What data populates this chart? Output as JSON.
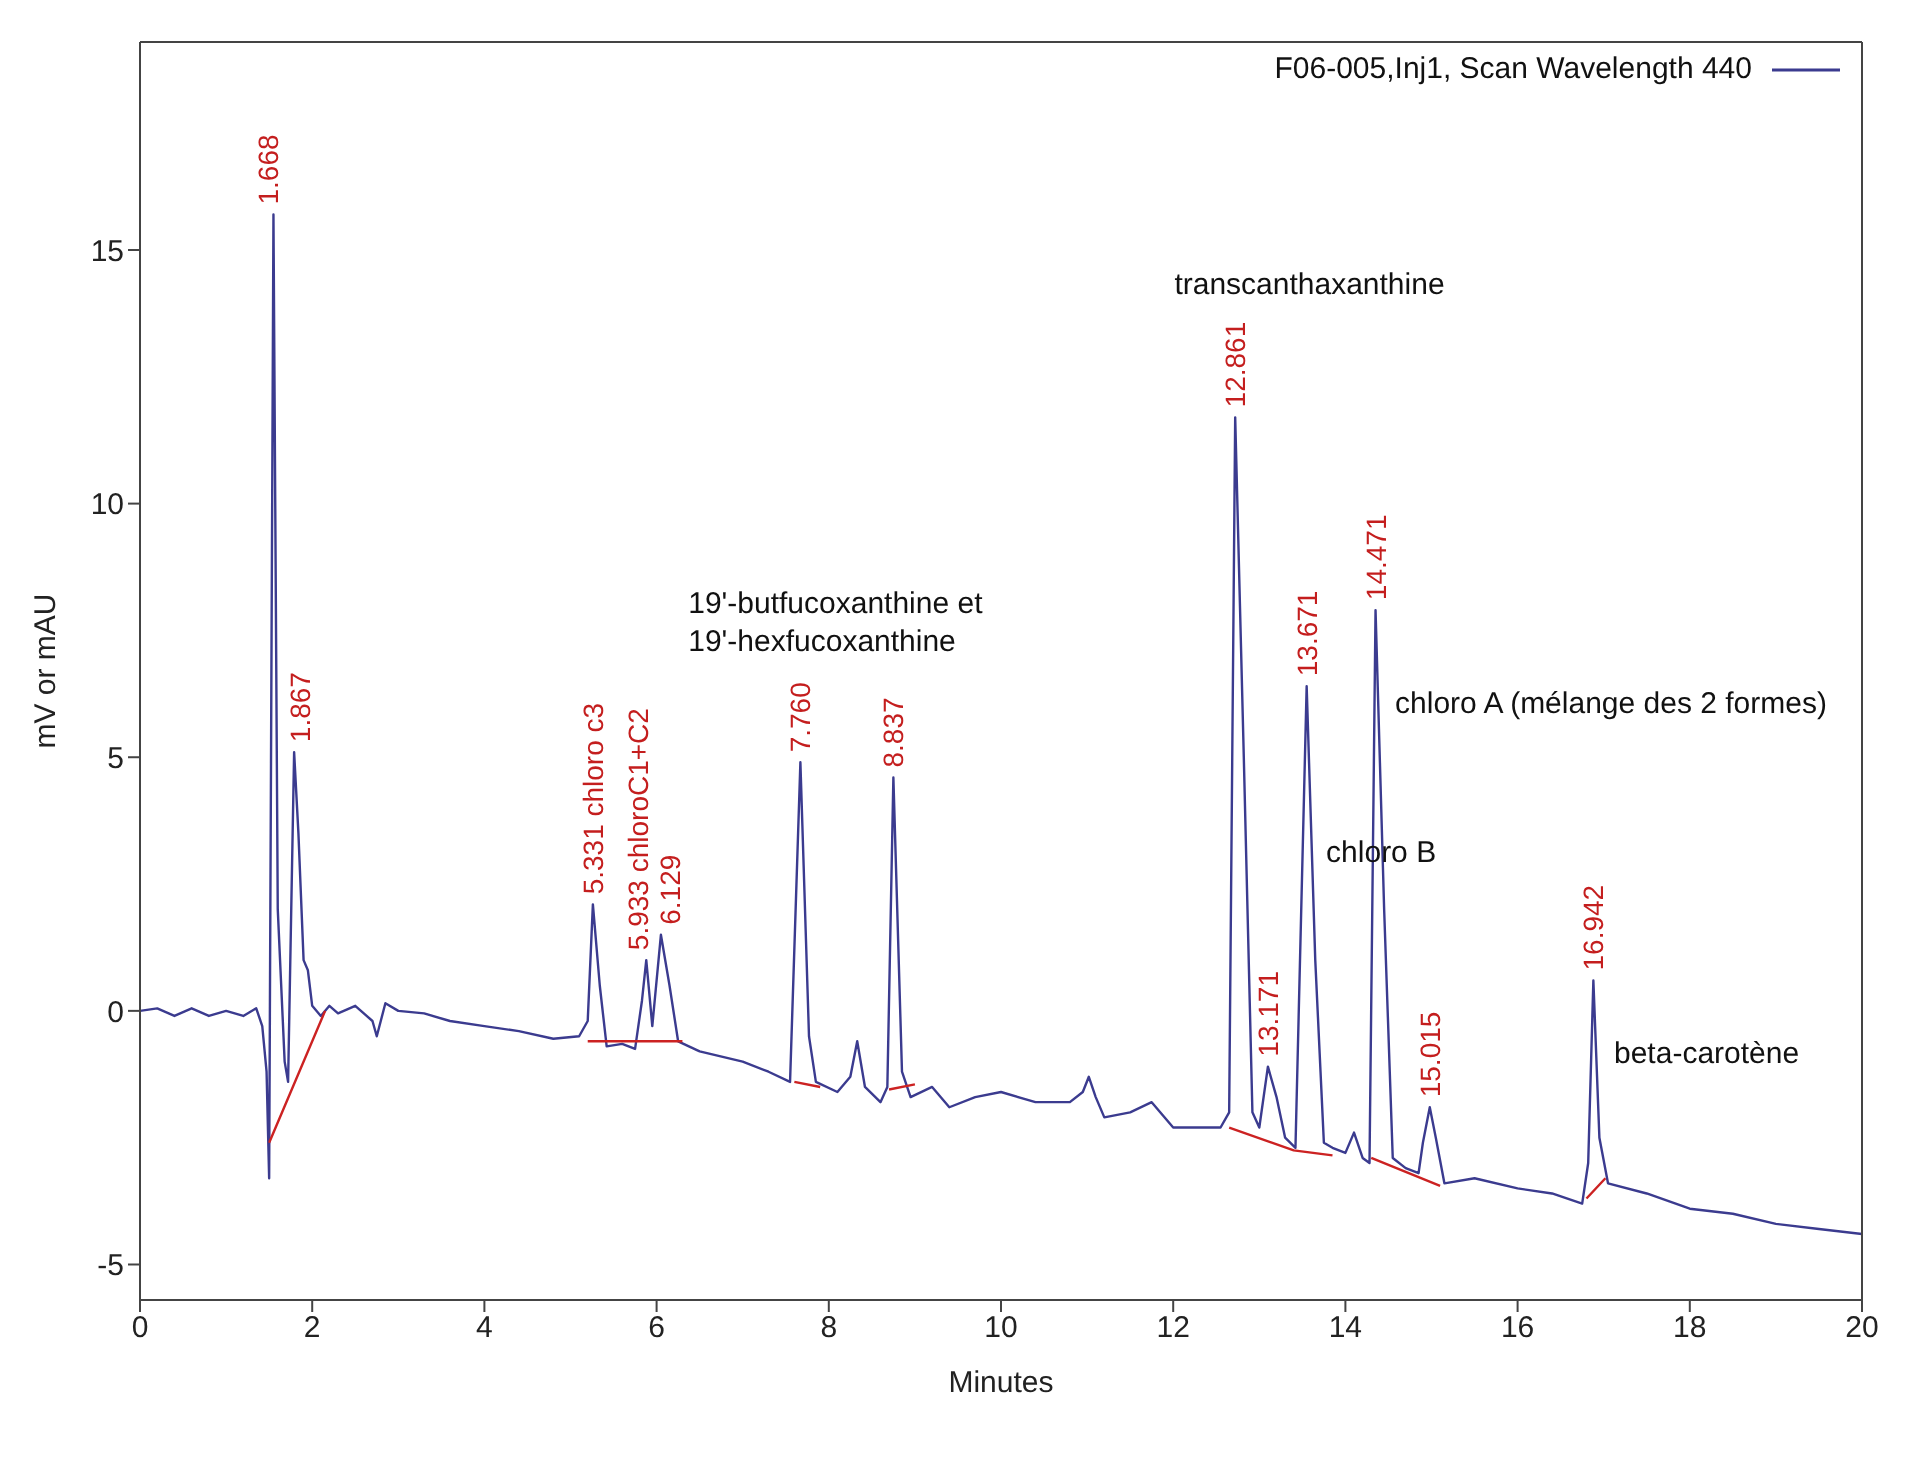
{
  "chart_data": {
    "type": "line",
    "xlabel": "Minutes",
    "ylabel": "mV or mAU",
    "xlim": [
      0,
      20
    ],
    "xticks": [
      0,
      2,
      4,
      6,
      8,
      10,
      12,
      14,
      16,
      18,
      20
    ],
    "ylim": [
      -5.7,
      19.1
    ],
    "yticks": [
      -5,
      0,
      5,
      10,
      15
    ],
    "legend": "top right",
    "marker": "none",
    "line_style": "solid",
    "series": [
      {
        "name": "F06-005,Inj1, Scan Wavelength 440",
        "color": "#3b3b8f",
        "x": [
          0,
          0.2,
          0.4,
          0.6,
          0.8,
          1.0,
          1.2,
          1.35,
          1.42,
          1.47,
          1.5,
          1.55,
          1.6,
          1.68,
          1.72,
          1.79,
          1.84,
          1.9,
          1.95,
          2.0,
          2.1,
          2.2,
          2.3,
          2.5,
          2.7,
          2.75,
          2.85,
          3.0,
          3.3,
          3.6,
          4.0,
          4.4,
          4.8,
          5.1,
          5.2,
          5.26,
          5.34,
          5.42,
          5.6,
          5.75,
          5.83,
          5.88,
          5.95,
          6.05,
          6.15,
          6.25,
          6.5,
          7.0,
          7.3,
          7.55,
          7.67,
          7.77,
          7.85,
          8.1,
          8.25,
          8.33,
          8.42,
          8.6,
          8.68,
          8.75,
          8.85,
          8.95,
          9.2,
          9.4,
          9.7,
          10.0,
          10.4,
          10.8,
          10.95,
          11.02,
          11.1,
          11.2,
          11.5,
          11.75,
          12.0,
          12.3,
          12.55,
          12.65,
          12.72,
          12.82,
          12.92,
          13.0,
          13.1,
          13.2,
          13.3,
          13.42,
          13.55,
          13.65,
          13.75,
          13.85,
          14.0,
          14.1,
          14.2,
          14.28,
          14.35,
          14.45,
          14.55,
          14.7,
          14.85,
          14.9,
          14.98,
          15.05,
          15.15,
          15.5,
          16.0,
          16.4,
          16.75,
          16.82,
          16.88,
          16.95,
          17.05,
          17.5,
          18.0,
          18.5,
          19.0,
          19.5,
          20.0
        ],
        "values": [
          0,
          0.05,
          -0.1,
          0.05,
          -0.1,
          0.0,
          -0.1,
          0.05,
          -0.3,
          -1.2,
          -3.3,
          15.7,
          2,
          -1.0,
          -1.4,
          5.1,
          3.5,
          1.0,
          0.8,
          0.1,
          -0.1,
          0.1,
          -0.05,
          0.1,
          -0.2,
          -0.5,
          0.15,
          0.0,
          -0.05,
          -0.2,
          -0.3,
          -0.4,
          -0.55,
          -0.5,
          -0.2,
          2.1,
          0.5,
          -0.7,
          -0.65,
          -0.75,
          0.2,
          1.0,
          -0.3,
          1.5,
          0.5,
          -0.6,
          -0.8,
          -1.0,
          -1.2,
          -1.4,
          4.9,
          -0.5,
          -1.4,
          -1.6,
          -1.3,
          -0.6,
          -1.5,
          -1.8,
          -1.5,
          4.6,
          -1.2,
          -1.7,
          -1.5,
          -1.9,
          -1.7,
          -1.6,
          -1.8,
          -1.8,
          -1.6,
          -1.3,
          -1.7,
          -2.1,
          -2.0,
          -1.8,
          -2.3,
          -2.3,
          -2.3,
          -2.0,
          11.7,
          5,
          -2.0,
          -2.3,
          -1.1,
          -1.7,
          -2.5,
          -2.7,
          6.4,
          1,
          -2.6,
          -2.7,
          -2.8,
          -2.4,
          -2.9,
          -3.0,
          7.9,
          2,
          -2.9,
          -3.1,
          -3.2,
          -2.6,
          -1.9,
          -2.5,
          -3.4,
          -3.3,
          -3.5,
          -3.6,
          -3.8,
          -3.0,
          0.6,
          -2.5,
          -3.4,
          -3.6,
          -3.9,
          -4.0,
          -4.2,
          -4.3,
          -4.4
        ]
      },
      {
        "color": "#cc2222",
        "x": [
          1.5,
          2.15,
          2.16,
          5.2,
          6.3,
          6.31,
          7.6,
          7.9,
          7.91,
          8.7,
          9.0,
          9.01,
          12.65,
          13.4,
          13.85,
          13.86,
          14.3,
          15.1,
          15.11,
          16.8,
          17.02
        ],
        "values": [
          -2.6,
          0.0,
          null,
          -0.6,
          -0.6,
          null,
          -1.4,
          -1.5,
          null,
          -1.55,
          -1.45,
          null,
          -2.3,
          -2.75,
          -2.85,
          null,
          -2.9,
          -3.45,
          null,
          -3.7,
          -3.3
        ]
      }
    ],
    "annotations": [
      {
        "text": "1.668",
        "x": 1.55,
        "y": 15.7
      },
      {
        "text": "1.867",
        "x": 1.79,
        "y": 5.1
      },
      {
        "text": "5.331 chloro c3",
        "x": 5.26,
        "y": 2.1
      },
      {
        "text": "5.933 chloroC1+C2",
        "x": 5.88,
        "y": 1.0
      },
      {
        "text": "6.129",
        "x": 6.05,
        "y": 1.5
      },
      {
        "text": "7.760",
        "x": 7.67,
        "y": 4.9
      },
      {
        "text": "8.837",
        "x": 8.75,
        "y": 4.6
      },
      {
        "text": "12.861",
        "x": 12.72,
        "y": 11.7
      },
      {
        "text": "13.171",
        "x": 13.1,
        "y": -1.1
      },
      {
        "text": "13.671",
        "x": 13.55,
        "y": 6.4
      },
      {
        "text": "14.471",
        "x": 14.35,
        "y": 7.9
      },
      {
        "text": "15.015",
        "x": 14.98,
        "y": -1.9
      },
      {
        "text": "16.942",
        "x": 16.88,
        "y": 0.6
      },
      "19'-butfucoxanthine et\n19'-hexfucoxanthine",
      "transcanthaxanthine",
      "chloro A (mélange des 2 formes)",
      "chloro B",
      "beta-carotène"
    ]
  }
}
